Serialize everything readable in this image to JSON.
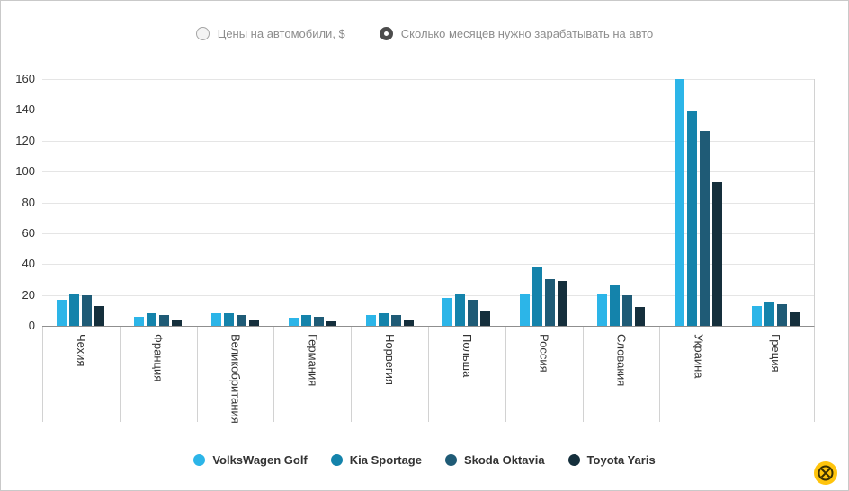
{
  "controls": {
    "options": [
      {
        "label": "Цены на автомобили, $",
        "selected": false
      },
      {
        "label": "Сколько месяцев нужно зарабатывать на авто",
        "selected": true
      }
    ]
  },
  "chart_data": {
    "type": "bar",
    "title": "",
    "xlabel": "",
    "ylabel": "",
    "categories": [
      "Чехия",
      "Франция",
      "Великобритания",
      "Германия",
      "Норвегия",
      "Польша",
      "Россия",
      "Словакия",
      "Украина",
      "Греция"
    ],
    "series": [
      {
        "name": "VolksWagen Golf",
        "color": "#2cb5e8",
        "values": [
          17,
          6,
          8,
          5,
          7,
          18,
          21,
          21,
          160,
          13
        ]
      },
      {
        "name": "Kia Sportage",
        "color": "#1483ab",
        "values": [
          21,
          8,
          8,
          7,
          8,
          21,
          38,
          26,
          139,
          15
        ]
      },
      {
        "name": "Skoda Oktavia",
        "color": "#1f5b76",
        "values": [
          20,
          7,
          7,
          6,
          7,
          17,
          30,
          20,
          126,
          14
        ]
      },
      {
        "name": "Toyota Yaris",
        "color": "#152f3c",
        "values": [
          13,
          4,
          4,
          3,
          4,
          10,
          29,
          12,
          93,
          9
        ]
      }
    ],
    "ylim": [
      0,
      160
    ],
    "ytick_step": 20,
    "grid": true,
    "legend_position": "bottom",
    "x_labels_rotated": true
  },
  "watermark": {
    "icon": "yellow-badge-icon",
    "color": "#ffc40c"
  }
}
